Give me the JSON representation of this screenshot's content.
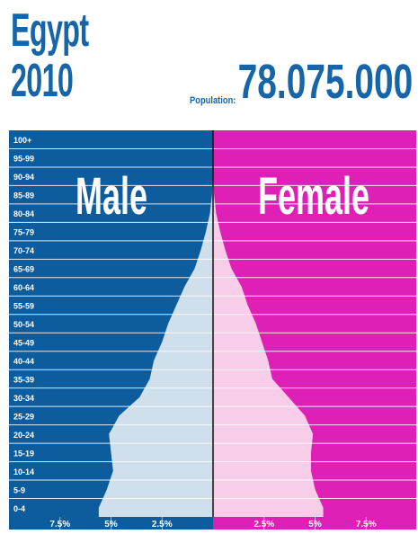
{
  "header": {
    "country": "Egypt",
    "year": "2010",
    "population_label": "Population:",
    "population_value": "78.075.000"
  },
  "colors": {
    "male_bg": "#0d5d9e",
    "female_bg": "#de20b6",
    "male_fill": "#cfe0ec",
    "female_fill": "#f7cde9",
    "title": "#1565a8"
  },
  "chart_data": {
    "type": "bar",
    "orientation": "horizontal-pyramid",
    "categories": [
      "0-4",
      "5-9",
      "10-14",
      "15-19",
      "20-24",
      "25-29",
      "30-34",
      "35-39",
      "40-44",
      "45-49",
      "50-54",
      "55-59",
      "60-64",
      "65-69",
      "70-74",
      "75-79",
      "80-84",
      "85-89",
      "90-94",
      "95-99",
      "100+"
    ],
    "series": [
      {
        "name": "Male",
        "values": [
          5.6,
          5.2,
          4.9,
          5.0,
          5.1,
          4.6,
          3.6,
          3.1,
          2.9,
          2.5,
          2.2,
          1.8,
          1.4,
          0.9,
          0.6,
          0.35,
          0.15,
          0.05,
          0.02,
          0.0,
          0.0
        ]
      },
      {
        "name": "Female",
        "values": [
          5.4,
          5.0,
          4.8,
          4.8,
          4.9,
          4.5,
          3.7,
          2.9,
          2.7,
          2.4,
          2.1,
          1.7,
          1.4,
          0.9,
          0.6,
          0.35,
          0.15,
          0.05,
          0.02,
          0.0,
          0.0
        ]
      }
    ],
    "x_ticks_male": [
      "7.5%",
      "5%",
      "2.5%"
    ],
    "x_ticks_female": [
      "2.5%",
      "5%",
      "7.5%"
    ],
    "x_tick_values": [
      7.5,
      5,
      2.5
    ],
    "xlim": [
      0,
      10
    ],
    "grid": true
  }
}
